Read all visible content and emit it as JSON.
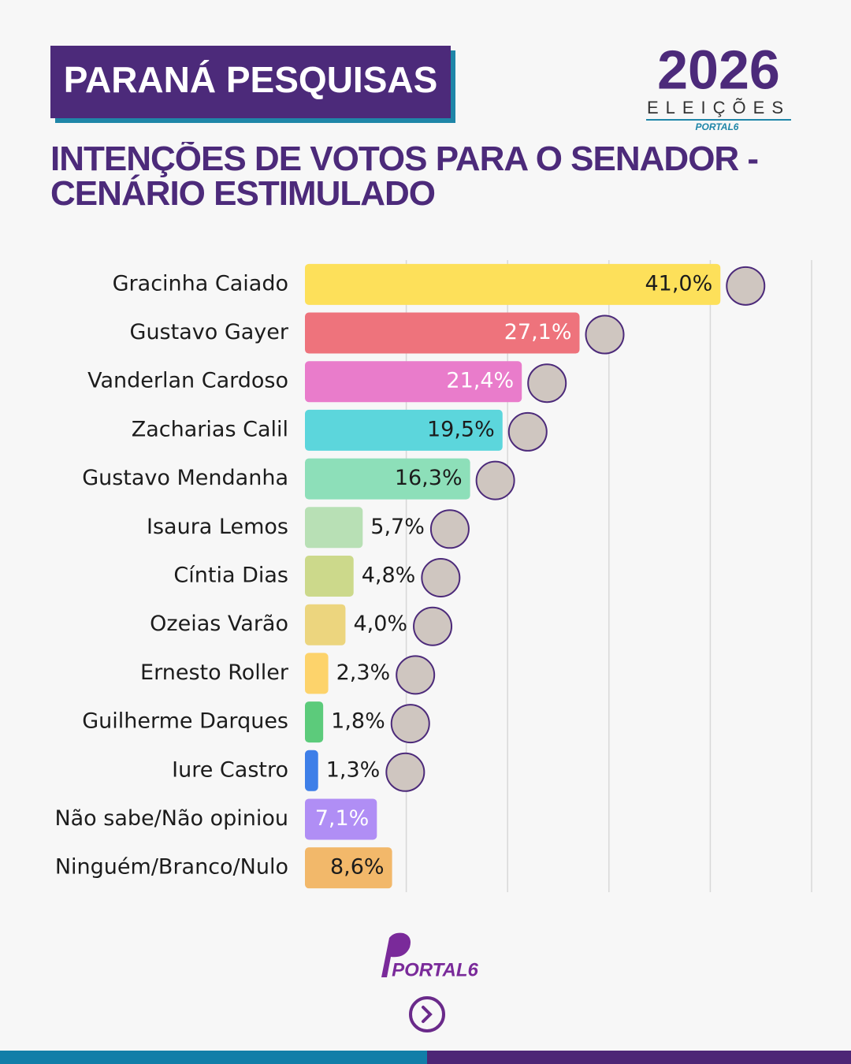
{
  "header": {
    "badge": "PARANÁ PESQUISAS",
    "logo_year": "2026",
    "logo_caption": "ELEIÇÕES",
    "logo_brand": "PORTAL6"
  },
  "chart_data": {
    "type": "bar",
    "orientation": "horizontal",
    "title": "INTENÇÕES DE VOTOS PARA O SENADOR - CENÁRIO ESTIMULADO",
    "categories": [
      "Gracinha Caiado",
      "Gustavo Gayer",
      "Vanderlan Cardoso",
      "Zacharias Calil",
      "Gustavo Mendanha",
      "Isaura Lemos",
      "Cíntia Dias",
      "Ozeias Varão",
      "Ernesto Roller",
      "Guilherme Darques",
      "Iure Castro",
      "Não sabe/Não opiniou",
      "Ninguém/Branco/Nulo"
    ],
    "values": [
      41.0,
      27.1,
      21.4,
      19.5,
      16.3,
      5.7,
      4.8,
      4.0,
      2.3,
      1.8,
      1.3,
      7.1,
      8.6
    ],
    "value_labels": [
      "41,0%",
      "27,1%",
      "21,4%",
      "19,5%",
      "16,3%",
      "5,7%",
      "4,8%",
      "4,0%",
      "2,3%",
      "1,8%",
      "1,3%",
      "7,1%",
      "8,6%"
    ],
    "colors": [
      "#fde05a",
      "#ee737c",
      "#e97ccb",
      "#5cd6dc",
      "#8ddfb9",
      "#b8e0b5",
      "#ccd98b",
      "#ecd57e",
      "#fdd36b",
      "#5ccb7b",
      "#3e7fe8",
      "#b08ef5",
      "#f2b86a"
    ],
    "value_label_colors": [
      "#1c1c1c",
      "#ffffff",
      "#ffffff",
      "#1c1c1c",
      "#1c1c1c",
      "#1c1c1c",
      "#1c1c1c",
      "#1c1c1c",
      "#1c1c1c",
      "#1c1c1c",
      "#1c1c1c",
      "#ffffff",
      "#1c1c1c"
    ],
    "xlim": [
      0,
      50
    ],
    "xticks": [
      10,
      20,
      30,
      40,
      50
    ],
    "grid": true
  },
  "footer": {
    "brand": "PORTAL6"
  }
}
